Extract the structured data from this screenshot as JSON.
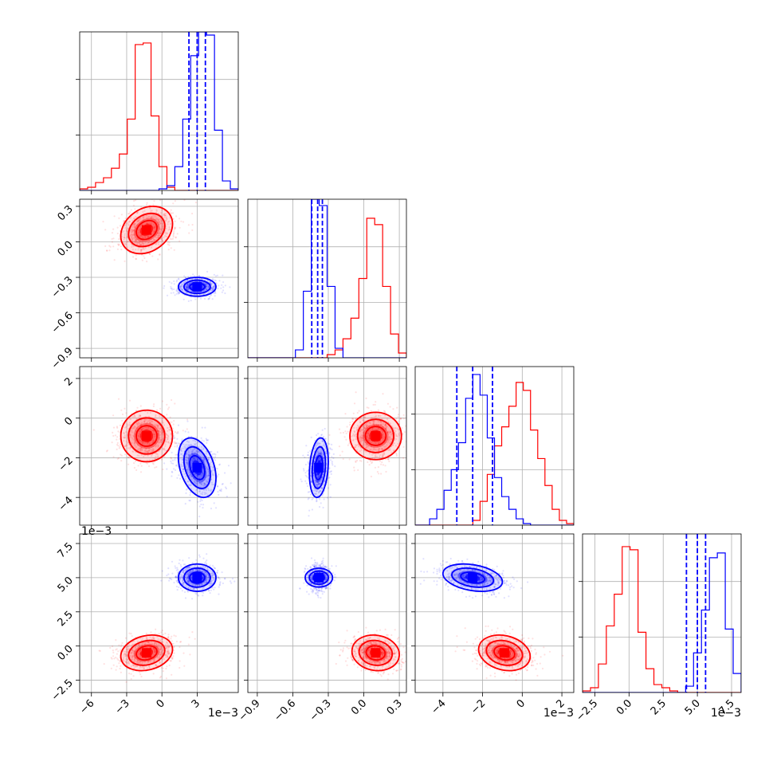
{
  "chart_data": {
    "type": "corner",
    "series": [
      {
        "name": "",
        "color": "#ff0000"
      },
      {
        "name": "",
        "color": "#0000ff"
      }
    ],
    "params": [
      {
        "range": [
          -7.0,
          6.5
        ],
        "ticks": [
          -6,
          -3,
          0,
          3
        ],
        "ticklabels": [
          "−6",
          "−3",
          "0",
          "3"
        ],
        "offset": "1e−3"
      },
      {
        "range": [
          -0.98,
          0.36
        ],
        "ticks": [
          -0.9,
          -0.6,
          -0.3,
          0.0,
          0.3
        ],
        "ticklabels": [
          "−0.9",
          "−0.6",
          "−0.3",
          "0.0",
          "0.3"
        ],
        "offset": ""
      },
      {
        "range": [
          -5.4,
          2.6
        ],
        "ticks": [
          -4,
          -2,
          0,
          2
        ],
        "ticklabels": [
          "−4",
          "−2",
          "0",
          "2"
        ],
        "offset": "1e−3"
      },
      {
        "range": [
          -3.4,
          8.2
        ],
        "ticks": [
          -2.5,
          0.0,
          2.5,
          5.0,
          7.5
        ],
        "ticklabels": [
          "−2.5",
          "0.0",
          "2.5",
          "5.0",
          "7.5"
        ],
        "offset": "1e−3"
      }
    ],
    "means": [
      [
        -1.3,
        0.1,
        -0.9,
        -0.5
      ],
      [
        3.0,
        -0.38,
        -2.5,
        5.0
      ]
    ],
    "sds": [
      [
        1.1,
        0.1,
        0.65,
        0.65
      ],
      [
        0.8,
        0.04,
        0.75,
        0.5
      ]
    ],
    "histograms": [
      {
        "red": [
          0.01,
          0.02,
          0.05,
          0.08,
          0.14,
          0.23,
          0.45,
          0.92,
          0.93,
          0.47,
          0.15,
          0.02,
          0,
          0,
          0,
          0,
          0,
          0,
          0,
          0
        ],
        "blue": [
          0,
          0,
          0,
          0,
          0,
          0,
          0,
          0,
          0,
          0,
          0.01,
          0.03,
          0.15,
          0.45,
          0.85,
          1.0,
          0.98,
          0.38,
          0.06,
          0.01
        ]
      },
      {
        "red": [
          0,
          0,
          0,
          0,
          0,
          0,
          0,
          0,
          0,
          0,
          0.02,
          0.05,
          0.12,
          0.25,
          0.5,
          0.88,
          0.84,
          0.45,
          0.15,
          0.03
        ],
        "blue": [
          0,
          0,
          0,
          0,
          0,
          0,
          0.05,
          0.42,
          1.0,
          0.96,
          0.45,
          0.06,
          0,
          0,
          0,
          0,
          0,
          0,
          0,
          0
        ]
      },
      {
        "red": [
          0,
          0,
          0,
          0,
          0,
          0,
          0,
          0,
          0.03,
          0.15,
          0.32,
          0.5,
          0.62,
          0.75,
          0.9,
          0.85,
          0.6,
          0.42,
          0.25,
          0.1,
          0.03,
          0.01
        ],
        "blue": [
          0,
          0,
          0.04,
          0.1,
          0.22,
          0.35,
          0.52,
          0.8,
          0.95,
          0.82,
          0.55,
          0.3,
          0.18,
          0.1,
          0.04,
          0.01,
          0,
          0,
          0,
          0,
          0,
          0
        ]
      },
      {
        "red": [
          0.01,
          0.03,
          0.18,
          0.42,
          0.62,
          0.92,
          0.9,
          0.38,
          0.15,
          0.05,
          0.03,
          0.01,
          0,
          0,
          0,
          0,
          0,
          0,
          0,
          0
        ],
        "blue": [
          0,
          0,
          0,
          0,
          0,
          0,
          0,
          0,
          0,
          0,
          0,
          0,
          0,
          0.04,
          0.25,
          0.52,
          0.85,
          0.88,
          0.4,
          0.12
        ]
      }
    ],
    "quantile_lines": [
      [
        2.3,
        3.0,
        3.7
      ],
      [
        -0.44,
        -0.39,
        -0.35
      ],
      [
        -3.3,
        -2.5,
        -1.5
      ],
      [
        4.2,
        5.0,
        5.6
      ]
    ],
    "correlations": {
      "red": {
        "1-0": 0.25,
        "2-0": 0.0,
        "2-1": 0.0,
        "3-0": 0.2,
        "3-1": -0.1,
        "3-2": -0.2
      },
      "blue": {
        "1-0": 0.0,
        "2-0": -0.35,
        "2-1": 0.2,
        "3-0": 0.0,
        "3-1": 0.0,
        "3-2": -0.3
      }
    },
    "grid": true
  }
}
